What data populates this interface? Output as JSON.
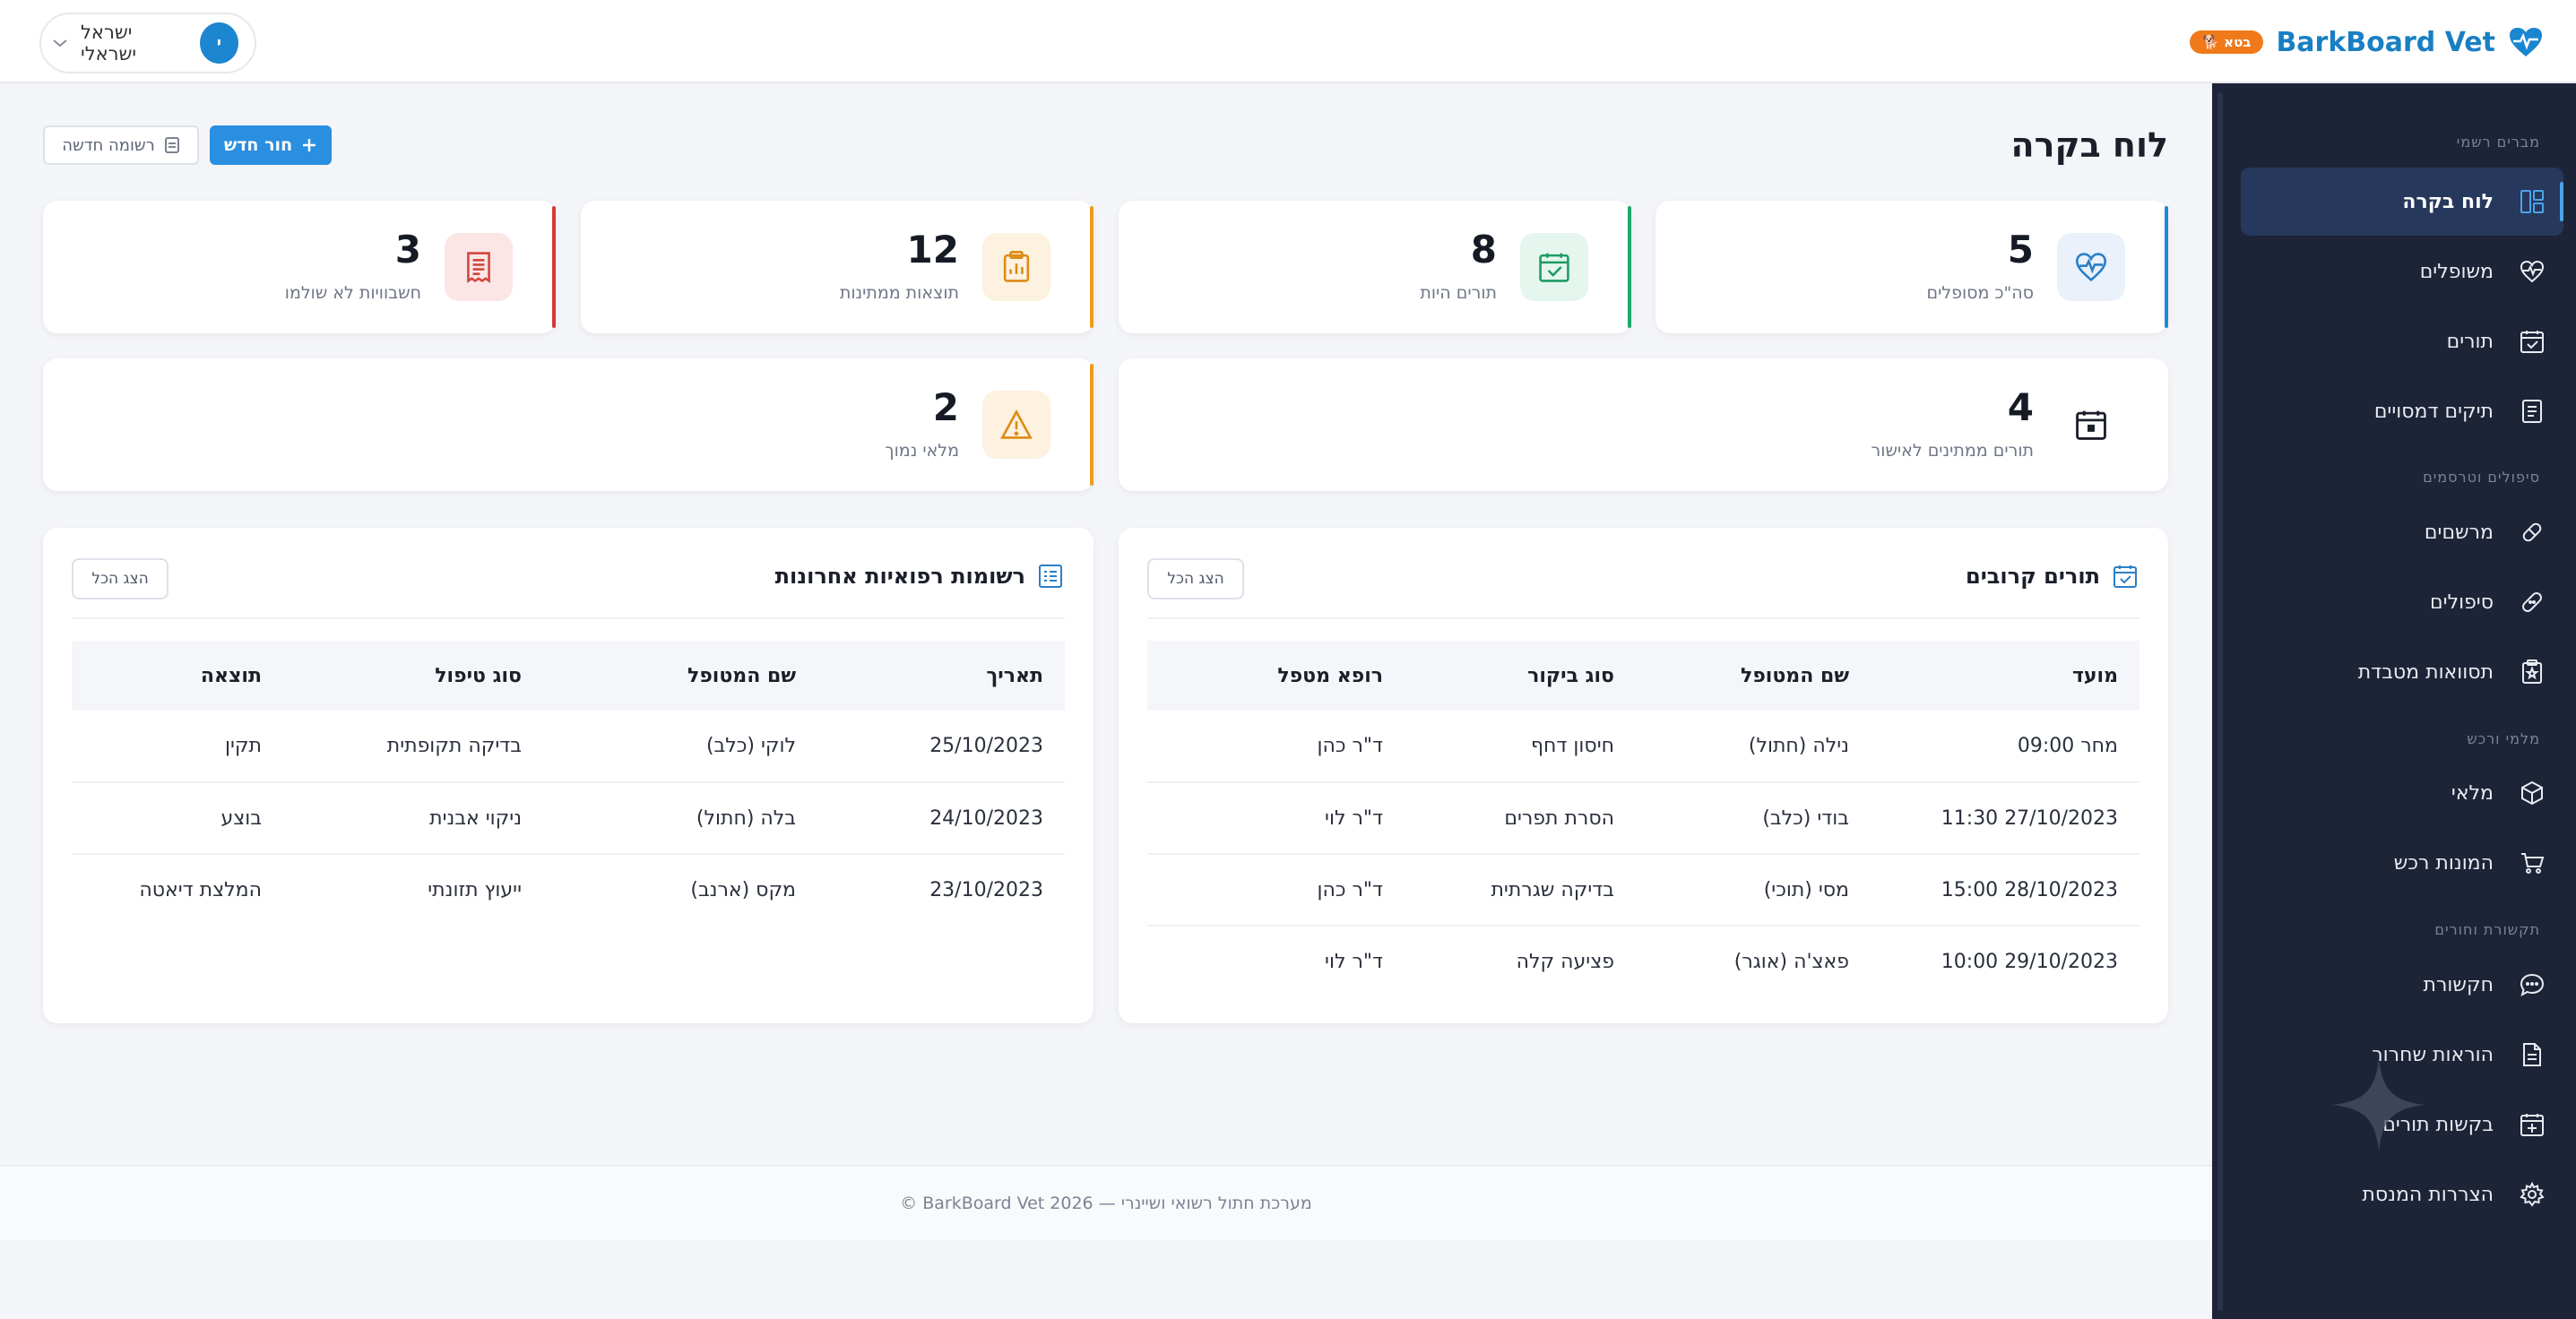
{
  "header": {
    "brand_name": "BarkBoard Vet",
    "beta_badge": "🐕 בטא",
    "user_initial": "י",
    "user_name": "ישראל ישראלי"
  },
  "sidebar": {
    "sections": [
      {
        "title": "מברים רשמי",
        "items": [
          {
            "label": "לוח בקרה",
            "icon": "dashboard-icon",
            "active": true
          },
          {
            "label": "משופלים",
            "icon": "heart-pulse-icon"
          },
          {
            "label": "תורים",
            "icon": "calendar-check-icon"
          },
          {
            "label": "תיקים דמסויים",
            "icon": "file-list-icon"
          }
        ]
      },
      {
        "title": "סיפולים וטרסמים",
        "items": [
          {
            "label": "מרשםים",
            "icon": "pill-icon"
          },
          {
            "label": "סיפולים",
            "icon": "bandage-icon"
          },
          {
            "label": "תסוואות מטבדת",
            "icon": "clipboard-star-icon"
          }
        ]
      },
      {
        "title": "מלמי ורכש",
        "items": [
          {
            "label": "מלאי",
            "icon": "box-icon"
          },
          {
            "label": "המונות רכש",
            "icon": "cart-icon"
          }
        ]
      },
      {
        "title": "תקשורת וחורים",
        "items": [
          {
            "label": "חקשורת",
            "icon": "chat-icon"
          },
          {
            "label": "הוראות שחרור",
            "icon": "document-icon"
          },
          {
            "label": "בקשות תורים",
            "icon": "calendar-plus-icon"
          },
          {
            "label": "הצררות המנסת",
            "icon": "gear-icon"
          }
        ]
      }
    ]
  },
  "main": {
    "title": "לוח בקרה",
    "new_appointment_label": "חור חדש",
    "new_record_label": "רשומה חדשה"
  },
  "stats": [
    {
      "value": "5",
      "label": "סה\"כ מסופלים",
      "accent": "#1d8ad6",
      "icon": "heart-pulse-icon"
    },
    {
      "value": "8",
      "label": "תורים היות",
      "accent": "#1fa86a",
      "icon": "calendar-check-icon"
    },
    {
      "value": "12",
      "label": "תוצאות ממתינות",
      "accent": "#ee9b1c",
      "icon": "clipboard-chart-icon"
    },
    {
      "value": "3",
      "label": "חשבוויות לא שולמו",
      "accent": "#d63a35",
      "icon": "receipt-icon"
    },
    {
      "value": "4",
      "label": "תורים ממתינים לאישור",
      "accent": "",
      "icon": "calendar-icon"
    },
    {
      "value": "2",
      "label": "מלאי נמוך",
      "accent": "#ee9b1c",
      "icon": "warning-icon"
    }
  ],
  "appointments": {
    "title": "תורים קרובים",
    "view_all": "הצג הכל",
    "columns": [
      "מועד",
      "שם המטופל",
      "סוג ביקור",
      "רופא מטפל"
    ],
    "rows": [
      [
        "מחר 09:00",
        "נילה (חתול)",
        "חיסון דחף",
        "ד\"ר כהן"
      ],
      [
        "27/10/2023 11:30",
        "בודי (כלב)",
        "הסרת תפרים",
        "ד\"ר לוי"
      ],
      [
        "28/10/2023 15:00",
        "מסי (תוכי)",
        "בדיקה שגרתית",
        "ד\"ר כהן"
      ],
      [
        "29/10/2023 10:00",
        "פאצ'ה (אוגר)",
        "פציעה קלה",
        "ד\"ר לוי"
      ]
    ]
  },
  "records": {
    "title": "רשומות רפואיות אחרונות",
    "view_all": "הצג הכל",
    "columns": [
      "תאריך",
      "שם המטופל",
      "סוג טיפול",
      "תוצאה"
    ],
    "rows": [
      [
        "25/10/2023",
        "לוקי (כלב)",
        "בדיקה תקופתית",
        "תקין"
      ],
      [
        "24/10/2023",
        "בלה (חתול)",
        "ניקוי אבנית",
        "בוצע"
      ],
      [
        "23/10/2023",
        "מקס (ארנב)",
        "ייעוץ תזונתי",
        "המלצת דיאטה"
      ]
    ]
  },
  "footer": {
    "text": "© BarkBoard Vet 2026 — מערכת חתול רשואי ושיינרי"
  }
}
